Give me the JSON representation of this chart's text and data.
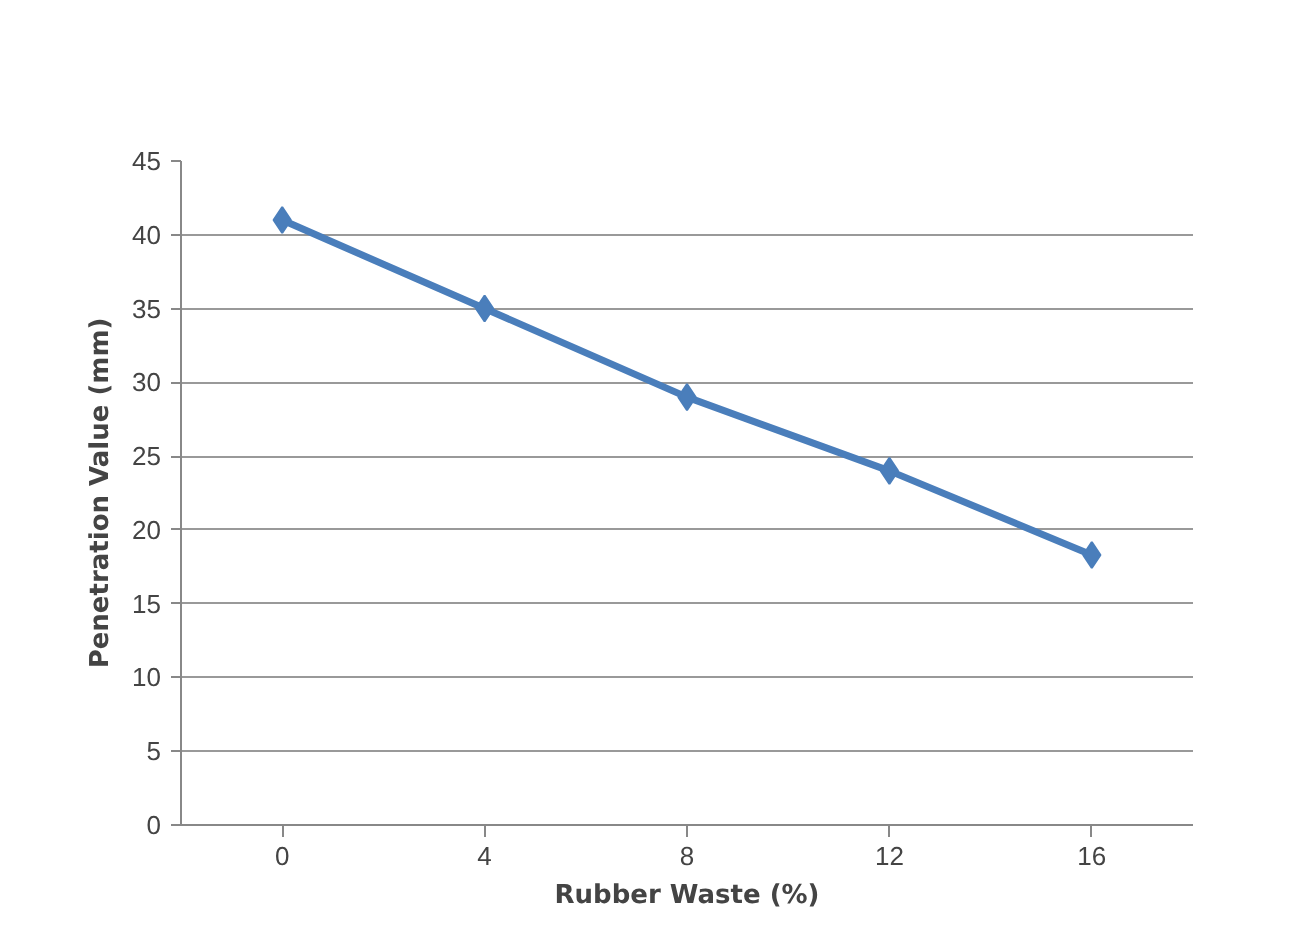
{
  "chart_data": {
    "type": "line",
    "xlabel": "Rubber Waste (%)",
    "ylabel": "Penetration Value (mm)",
    "categories": [
      "0",
      "4",
      "8",
      "12",
      "16"
    ],
    "series": [
      {
        "color": "#4a7ebb",
        "values": [
          41,
          35,
          29,
          24,
          18.3
        ]
      }
    ],
    "ylim": [
      0,
      45
    ],
    "yticks": [
      0,
      5,
      10,
      15,
      20,
      25,
      30,
      35,
      40,
      45
    ],
    "grid": "y",
    "marker": "diamond",
    "line_style": "solid"
  }
}
